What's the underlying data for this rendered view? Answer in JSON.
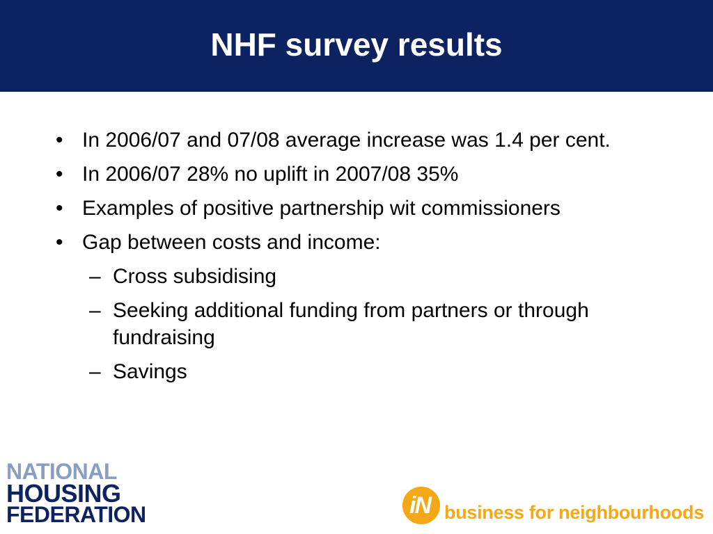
{
  "slide": {
    "title": "NHF survey results",
    "bullets": [
      "In 2006/07 and 07/08 average increase was 1.4 per cent.",
      "In 2006/07 28% no uplift in 2007/08 35%",
      "Examples of positive partnership wit commissioners",
      "Gap between costs and income:"
    ],
    "sub_bullets": [
      "Cross subsidising",
      "Seeking additional funding from partners or through fundraising",
      "Savings"
    ],
    "bullet_mark": "•",
    "sub_mark": "–"
  },
  "logos": {
    "nhf": [
      "NATIONAL",
      "HOUSING",
      "FEDERATION"
    ],
    "in_mark": "iN",
    "in_tagline": "business for neighbourhoods"
  },
  "colors": {
    "header": "#0d2260",
    "nhf_light": "#8a9ec4",
    "in_orange": "#f5a815"
  }
}
